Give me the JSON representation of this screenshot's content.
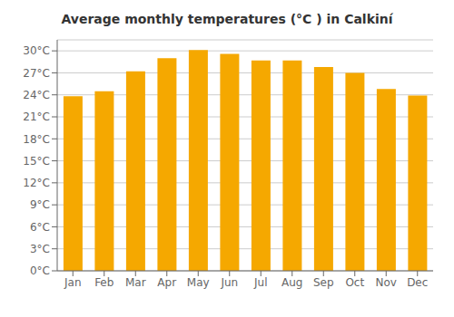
{
  "chart_data": {
    "type": "bar",
    "title": "Average monthly temperatures (°C ) in Calkiní",
    "categories": [
      "Jan",
      "Feb",
      "Mar",
      "Apr",
      "May",
      "Jun",
      "Jul",
      "Aug",
      "Sep",
      "Oct",
      "Nov",
      "Dec"
    ],
    "values": [
      23.8,
      24.5,
      27.2,
      29.0,
      30.1,
      29.6,
      28.7,
      28.7,
      27.8,
      27.0,
      24.8,
      23.9
    ],
    "color": "#F5A800",
    "ylim": [
      0,
      31.5
    ],
    "yticks": [
      {
        "value": 0,
        "label": "0°C"
      },
      {
        "value": 3,
        "label": "3°C"
      },
      {
        "value": 6,
        "label": "6°C"
      },
      {
        "value": 9,
        "label": "9°C"
      },
      {
        "value": 12,
        "label": "12°C"
      },
      {
        "value": 15,
        "label": "15°C"
      },
      {
        "value": 18,
        "label": "18°C"
      },
      {
        "value": 21,
        "label": "21°C"
      },
      {
        "value": 24,
        "label": "24°C"
      },
      {
        "value": 27,
        "label": "27°C"
      },
      {
        "value": 30,
        "label": "30°C"
      }
    ],
    "grid": true
  }
}
